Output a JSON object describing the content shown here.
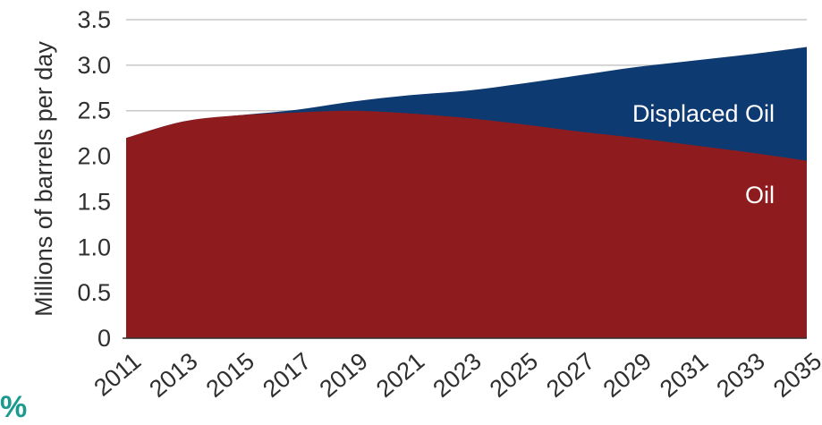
{
  "colors": {
    "oil": "#8e1c1e",
    "displaced_oil": "#0e3a72",
    "grid": "#c8c8c8",
    "axis": "#2f2f2f",
    "label_text": "#ffffff",
    "cropped_text": "#1a9a8e"
  },
  "cropped_text": "%",
  "chart_data": {
    "type": "area",
    "stacked": true,
    "ylabel": "Millions of barrels per day",
    "xlabel": "",
    "ylim": [
      0,
      3.5
    ],
    "y_ticks": [
      0,
      0.5,
      1.0,
      1.5,
      2.0,
      2.5,
      3.0,
      3.5
    ],
    "y_tick_labels": [
      "0",
      "0.5",
      "1.0",
      "1.5",
      "2.0",
      "2.5",
      "3.0",
      "3.5"
    ],
    "x": [
      2011,
      2013,
      2015,
      2017,
      2019,
      2021,
      2023,
      2025,
      2027,
      2029,
      2031,
      2033,
      2035
    ],
    "x_tick_labels": [
      "2011",
      "2013",
      "2015",
      "2017",
      "2019",
      "2021",
      "2023",
      "2025",
      "2027",
      "2029",
      "2031",
      "2033",
      "2035"
    ],
    "grid": "horizontal",
    "series": [
      {
        "name": "Oil",
        "color": "#8e1c1e",
        "values": [
          2.2,
          2.38,
          2.45,
          2.48,
          2.5,
          2.47,
          2.42,
          2.35,
          2.27,
          2.2,
          2.12,
          2.04,
          1.95
        ]
      },
      {
        "name": "Displaced Oil",
        "color": "#0e3a72",
        "values": [
          0.0,
          0.0,
          0.0,
          0.03,
          0.1,
          0.2,
          0.3,
          0.45,
          0.62,
          0.78,
          0.93,
          1.08,
          1.25
        ]
      }
    ]
  }
}
